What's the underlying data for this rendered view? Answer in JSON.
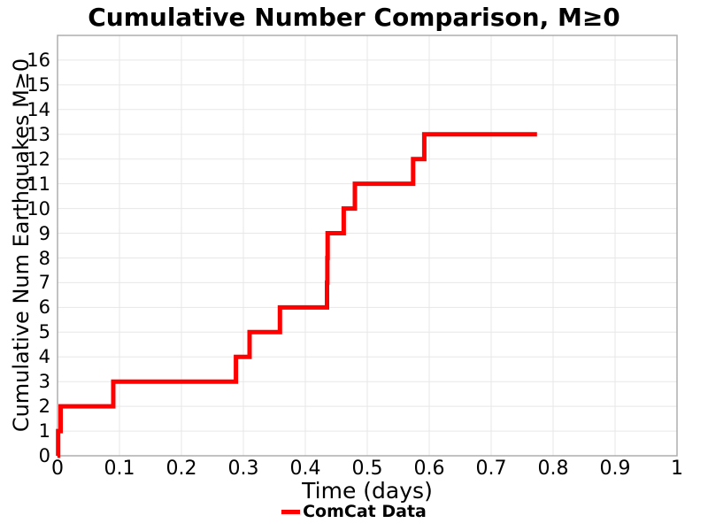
{
  "chart_data": {
    "type": "line",
    "step_mode": "post",
    "title": "Cumulative Number Comparison, M≥0",
    "xlabel": "Time (days)",
    "ylabel": "Cumulative Num Earthquakes M≥0",
    "xlim": [
      0,
      1
    ],
    "ylim": [
      0,
      17
    ],
    "grid": true,
    "grid_color": "#e7e7e7",
    "border_color": "#adadad",
    "background_color": "#ffffff",
    "xticks": {
      "values": [
        0,
        0.1,
        0.2,
        0.3,
        0.4,
        0.5,
        0.6,
        0.7,
        0.8,
        0.9,
        1
      ],
      "labels": [
        "0",
        "0.1",
        "0.2",
        "0.3",
        "0.4",
        "0.5",
        "0.6",
        "0.7",
        "0.8",
        "0.9",
        "1"
      ]
    },
    "yticks": {
      "values": [
        0,
        1,
        2,
        3,
        4,
        5,
        6,
        7,
        8,
        9,
        10,
        11,
        12,
        13,
        14,
        15,
        16
      ],
      "labels": [
        "0",
        "1",
        "2",
        "3",
        "4",
        "5",
        "6",
        "7",
        "8",
        "9",
        "10",
        "11",
        "12",
        "13",
        "14",
        "15",
        "16"
      ]
    },
    "legend": {
      "position": "bottom-center",
      "entries": [
        {
          "label": "ComCat Data",
          "color": "#ff0000"
        }
      ]
    },
    "series": [
      {
        "name": "ComCat Data",
        "color": "#ff0000",
        "line_width": 5,
        "start": [
          0,
          0
        ],
        "events": [
          [
            0.001,
            1
          ],
          [
            0.005,
            2
          ],
          [
            0.09,
            3
          ],
          [
            0.288,
            4
          ],
          [
            0.31,
            5
          ],
          [
            0.359,
            6
          ],
          [
            0.435,
            7
          ],
          [
            0.4355,
            8
          ],
          [
            0.436,
            9
          ],
          [
            0.462,
            10
          ],
          [
            0.48,
            11
          ],
          [
            0.574,
            12
          ],
          [
            0.592,
            13
          ]
        ],
        "end_time": 0.774
      }
    ]
  }
}
